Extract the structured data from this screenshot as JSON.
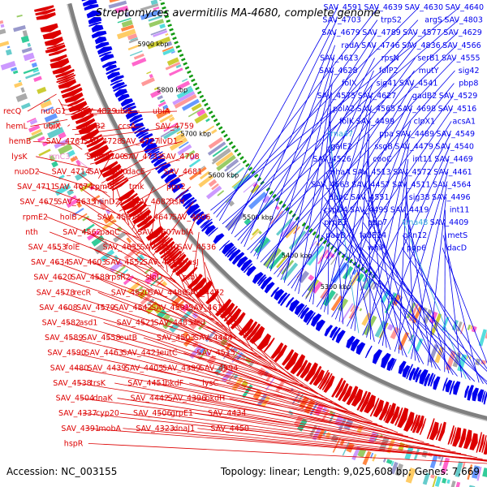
{
  "title": "Streptomyces avermitilis MA-4680, complete genome",
  "footer": {
    "accession": "Accession: NC_003155",
    "summary": "Topology: linear; Length: 9,025,608 bp; Genes: 7,669"
  },
  "colors": {
    "reverse_strand": "#dd0000",
    "forward_strand": "#0000ee",
    "rna_label": "#33aadd",
    "pink_label": "#ee88cc",
    "backbone": "#808080",
    "ticks": "#119911"
  },
  "kbp_ticks": [
    "6000 kbp",
    "5900 kbp",
    "5800 kbp",
    "5700 kbp",
    "5600 kbp",
    "5500 kbp",
    "5400 kbp",
    "5300 kbp"
  ],
  "blue_labels": [
    {
      "t": "SAV_4640",
      "c": "blue"
    },
    {
      "t": "SAV_4630",
      "c": "blue"
    },
    {
      "t": "SAV_4639",
      "c": "blue"
    },
    {
      "t": "SAV_4591",
      "c": "blue"
    },
    {
      "t": "SAV_4803",
      "c": "blue"
    },
    {
      "t": "argS",
      "c": "blue"
    },
    {
      "t": "trpS2",
      "c": "blue"
    },
    {
      "t": "SAV_4703",
      "c": "blue"
    },
    {
      "t": "SAV_4629",
      "c": "blue"
    },
    {
      "t": "SAV_4577",
      "c": "blue"
    },
    {
      "t": "SAV_4789",
      "c": "blue"
    },
    {
      "t": "SAV_4679",
      "c": "blue"
    },
    {
      "t": "SAV_4566",
      "c": "blue"
    },
    {
      "t": "SAV_4836",
      "c": "blue"
    },
    {
      "t": "SAV_4746",
      "c": "blue"
    },
    {
      "t": "radA",
      "c": "blue"
    },
    {
      "t": "SAV_4555",
      "c": "blue"
    },
    {
      "t": "serB1",
      "c": "blue"
    },
    {
      "t": "rpsN",
      "c": "blue"
    },
    {
      "t": "SAV_4613",
      "c": "blue"
    },
    {
      "t": "sig42",
      "c": "blue"
    },
    {
      "t": "mutY",
      "c": "blue"
    },
    {
      "t": "folP2",
      "c": "blue"
    },
    {
      "t": "SAV_4628",
      "c": "blue"
    },
    {
      "t": "pbp8",
      "c": "blue"
    },
    {
      "t": "SAV_4541",
      "c": "blue"
    },
    {
      "t": "sig41",
      "c": "blue"
    },
    {
      "t": "folX",
      "c": "blue"
    },
    {
      "t": "SAV_4529",
      "c": "blue"
    },
    {
      "t": "gadB2",
      "c": "blue"
    },
    {
      "t": "SAV_4627",
      "c": "blue"
    },
    {
      "t": "SAV_4575",
      "c": "blue"
    },
    {
      "t": "SAV_4516",
      "c": "blue"
    },
    {
      "t": "SAV_4698",
      "c": "blue"
    },
    {
      "t": "SAV_4565",
      "c": "blue"
    },
    {
      "t": "polA2",
      "c": "blue"
    },
    {
      "t": "acsA1",
      "c": "blue"
    },
    {
      "t": "clpX1",
      "c": "blue"
    },
    {
      "t": "SAV_4499",
      "c": "blue"
    },
    {
      "t": "folK",
      "c": "blue"
    },
    {
      "t": "SAV_4549",
      "c": "blue"
    },
    {
      "t": "SAV_4489",
      "c": "blue"
    },
    {
      "t": "ppa",
      "c": "blue"
    },
    {
      "t": "trna47",
      "c": "rna"
    },
    {
      "t": "SAV_4540",
      "c": "blue"
    },
    {
      "t": "SAV_4479",
      "c": "blue"
    },
    {
      "t": "ssgB",
      "c": "blue"
    },
    {
      "t": "galE2",
      "c": "blue"
    },
    {
      "t": "SAV_4469",
      "c": "blue"
    },
    {
      "t": "int11",
      "c": "blue"
    },
    {
      "t": "cooC",
      "c": "blue"
    },
    {
      "t": "SAV_4526",
      "c": "blue"
    },
    {
      "t": "SAV_4461",
      "c": "blue"
    },
    {
      "t": "SAV_4572",
      "c": "blue"
    },
    {
      "t": "SAV_4513",
      "c": "blue"
    },
    {
      "t": "nhaA",
      "c": "blue"
    },
    {
      "t": "SAV_4564",
      "c": "blue"
    },
    {
      "t": "SAV_4511",
      "c": "blue"
    },
    {
      "t": "SAV_4457",
      "c": "blue"
    },
    {
      "t": "SAV_4563",
      "c": "blue"
    },
    {
      "t": "SAV_4496",
      "c": "blue"
    },
    {
      "t": "sig38",
      "c": "blue"
    },
    {
      "t": "SAV_4551",
      "c": "blue"
    },
    {
      "t": "dapC",
      "c": "blue"
    },
    {
      "t": "int11",
      "c": "blue"
    },
    {
      "t": "SAV_4419",
      "c": "blue"
    },
    {
      "t": "SAV_4495",
      "c": "blue"
    },
    {
      "t": "cspD4",
      "c": "blue"
    },
    {
      "t": "SAV_4409",
      "c": "blue"
    },
    {
      "t": "trna48",
      "c": "rna"
    },
    {
      "t": "pbp7",
      "c": "blue"
    },
    {
      "t": "prpE3",
      "c": "blue"
    },
    {
      "t": "metS",
      "c": "blue"
    },
    {
      "t": "pkn12",
      "c": "blue"
    },
    {
      "t": "fadE24",
      "c": "blue"
    },
    {
      "t": "paaD",
      "c": "blue"
    },
    {
      "t": "dacD",
      "c": "blue"
    },
    {
      "t": "pbp6",
      "c": "blue"
    },
    {
      "t": "whiP",
      "c": "blue"
    }
  ],
  "red_labels": [
    {
      "t": "recQ",
      "c": "red"
    },
    {
      "t": "nuoG1",
      "c": "red"
    },
    {
      "t": "SAV_4829",
      "c": "red"
    },
    {
      "t": "ubiE",
      "c": "red"
    },
    {
      "t": "ubiA",
      "c": "red"
    },
    {
      "t": "hemL",
      "c": "red"
    },
    {
      "t": "ubiX",
      "c": "red"
    },
    {
      "t": "abaB2",
      "c": "red"
    },
    {
      "t": "ccsA",
      "c": "red"
    },
    {
      "t": "SAV_4759",
      "c": "red"
    },
    {
      "t": "hemB",
      "c": "red"
    },
    {
      "t": "SAV_4761",
      "c": "red"
    },
    {
      "t": "SAV_4728",
      "c": "red"
    },
    {
      "t": "SAV_4727",
      "c": "red"
    },
    {
      "t": "ilvD1",
      "c": "red"
    },
    {
      "t": "lysK",
      "c": "red"
    },
    {
      "t": "rrnC3",
      "c": "pink"
    },
    {
      "t": "SAV_4700",
      "c": "red"
    },
    {
      "t": "SAV_4733",
      "c": "red"
    },
    {
      "t": "SAV_4708",
      "c": "red"
    },
    {
      "t": "nuoD2",
      "c": "red"
    },
    {
      "t": "SAV_4714",
      "c": "red"
    },
    {
      "t": "SAV_4680",
      "c": "red"
    },
    {
      "t": "dacE",
      "c": "red"
    },
    {
      "t": "SAV_4681",
      "c": "red"
    },
    {
      "t": "SAV_4711",
      "c": "red"
    },
    {
      "t": "SAV_4674",
      "c": "red"
    },
    {
      "t": "rpmG",
      "c": "red"
    },
    {
      "t": "tmk",
      "c": "red"
    },
    {
      "t": "ppx2",
      "c": "red"
    },
    {
      "t": "SAV_4675",
      "c": "red"
    },
    {
      "t": "SAV_4633",
      "c": "red"
    },
    {
      "t": "minD2",
      "c": "red"
    },
    {
      "t": "SAV_4682",
      "c": "red"
    },
    {
      "t": "ftsH",
      "c": "red"
    },
    {
      "t": "rpmE2",
      "c": "red"
    },
    {
      "t": "holB",
      "c": "red"
    },
    {
      "t": "SAV_4587",
      "c": "red"
    },
    {
      "t": "SAV_4647",
      "c": "red"
    },
    {
      "t": "SAV_4606",
      "c": "red"
    },
    {
      "t": "nth",
      "c": "red"
    },
    {
      "t": "SAV_4562",
      "c": "red"
    },
    {
      "t": "panC",
      "c": "red"
    },
    {
      "t": "SAV_4607",
      "c": "red"
    },
    {
      "t": "wblA",
      "c": "red"
    },
    {
      "t": "SAV_4553",
      "c": "red"
    },
    {
      "t": "folE",
      "c": "red"
    },
    {
      "t": "SAV_4635",
      "c": "red"
    },
    {
      "t": "SAV_4570",
      "c": "red"
    },
    {
      "t": "SAV_4536",
      "c": "red"
    },
    {
      "t": "SAV_4634",
      "c": "red"
    },
    {
      "t": "SAV_4603",
      "c": "red"
    },
    {
      "t": "SAV_4552",
      "c": "red"
    },
    {
      "t": "SAV_4518",
      "c": "red"
    },
    {
      "t": "mesJ",
      "c": "red"
    },
    {
      "t": "SAV_4620",
      "c": "red"
    },
    {
      "t": "SAV_4588",
      "c": "red"
    },
    {
      "t": "rpsR2",
      "c": "red"
    },
    {
      "t": "slpD",
      "c": "red"
    },
    {
      "t": "rsbV",
      "c": "red"
    },
    {
      "t": "SAV_4578",
      "c": "red"
    },
    {
      "t": "recR",
      "c": "red"
    },
    {
      "t": "SAV_4520",
      "c": "red"
    },
    {
      "t": "SAV_4488",
      "c": "red"
    },
    {
      "t": "SAV_4472",
      "c": "red"
    },
    {
      "t": "SAV_4608",
      "c": "red"
    },
    {
      "t": "SAV_4579",
      "c": "red"
    },
    {
      "t": "SAV_4542",
      "c": "red"
    },
    {
      "t": "SAV_4501",
      "c": "red"
    },
    {
      "t": "SAV_4615",
      "c": "red"
    },
    {
      "t": "SAV_4582",
      "c": "red"
    },
    {
      "t": "asd1",
      "c": "red"
    },
    {
      "t": "SAV_4521",
      "c": "red"
    },
    {
      "t": "SAV_4483",
      "c": "red"
    },
    {
      "t": "dcd",
      "c": "red"
    },
    {
      "t": "SAV_4589",
      "c": "red"
    },
    {
      "t": "SAV_4558",
      "c": "red"
    },
    {
      "t": "eutB",
      "c": "red"
    },
    {
      "t": "SAV_4503",
      "c": "red"
    },
    {
      "t": "SAV_4444",
      "c": "red"
    },
    {
      "t": "SAV_4590",
      "c": "red"
    },
    {
      "t": "SAV_4463",
      "c": "red"
    },
    {
      "t": "SAV_4421",
      "c": "red"
    },
    {
      "t": "eutC",
      "c": "red"
    },
    {
      "t": "SAV_4515",
      "c": "red"
    },
    {
      "t": "SAV_4480",
      "c": "red"
    },
    {
      "t": "SAV_4439",
      "c": "red"
    },
    {
      "t": "SAV_4405",
      "c": "red"
    },
    {
      "t": "SAV_4399",
      "c": "red"
    },
    {
      "t": "SAV_4594",
      "c": "red"
    },
    {
      "t": "SAV_4538",
      "c": "red"
    },
    {
      "t": "trsK",
      "c": "red"
    },
    {
      "t": "SAV_4451",
      "c": "red"
    },
    {
      "t": "bkdF",
      "c": "red"
    },
    {
      "t": "lysC",
      "c": "red"
    },
    {
      "t": "SAV_4504",
      "c": "red"
    },
    {
      "t": "dnaK",
      "c": "red"
    },
    {
      "t": "SAV_4442",
      "c": "red"
    },
    {
      "t": "SAV_4396",
      "c": "red"
    },
    {
      "t": "bkdH",
      "c": "red"
    },
    {
      "t": "SAV_4337",
      "c": "red"
    },
    {
      "t": "cyp20",
      "c": "red"
    },
    {
      "t": "SAV_4506",
      "c": "red"
    },
    {
      "t": "grpE1",
      "c": "red"
    },
    {
      "t": "SAV_4434",
      "c": "red"
    },
    {
      "t": "SAV_4391",
      "c": "red"
    },
    {
      "t": "mobA",
      "c": "red"
    },
    {
      "t": "SAV_4323",
      "c": "red"
    },
    {
      "t": "dnaJ1",
      "c": "red"
    },
    {
      "t": "SAV_4450",
      "c": "red"
    },
    {
      "t": "hspR",
      "c": "red"
    }
  ]
}
